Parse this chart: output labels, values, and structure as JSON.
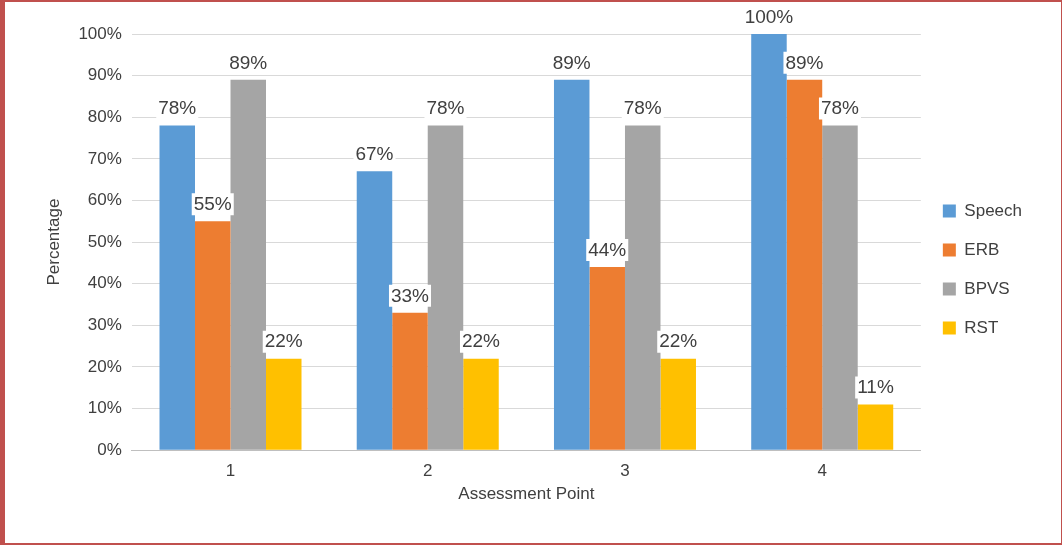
{
  "chart_data": {
    "type": "bar",
    "xlabel": "Assessment Point",
    "ylabel": "Percentage",
    "categories": [
      "1",
      "2",
      "3",
      "4"
    ],
    "series": [
      {
        "name": "Speech",
        "color": "#5b9bd5",
        "values": [
          78,
          67,
          89,
          100
        ],
        "value_labels": [
          "78%",
          "67%",
          "89%",
          "100%"
        ]
      },
      {
        "name": "ERB",
        "color": "#ed7d31",
        "values": [
          55,
          33,
          44,
          89
        ],
        "value_labels": [
          "55%",
          "33%",
          "44%",
          "89%"
        ]
      },
      {
        "name": "BPVS",
        "color": "#a5a5a5",
        "values": [
          89,
          78,
          78,
          78
        ],
        "value_labels": [
          "89%",
          "78%",
          "78%",
          "78%"
        ]
      },
      {
        "name": "RST",
        "color": "#ffc000",
        "values": [
          22,
          22,
          22,
          11
        ],
        "value_labels": [
          "22%",
          "22%",
          "22%",
          "11%"
        ]
      }
    ],
    "ylim": [
      0,
      100
    ],
    "yticks": [
      {
        "value": 0,
        "label": "0%"
      },
      {
        "value": 10,
        "label": "10%"
      },
      {
        "value": 20,
        "label": "20%"
      },
      {
        "value": 30,
        "label": "30%"
      },
      {
        "value": 40,
        "label": "40%"
      },
      {
        "value": 50,
        "label": "50%"
      },
      {
        "value": 60,
        "label": "60%"
      },
      {
        "value": 70,
        "label": "70%"
      },
      {
        "value": 80,
        "label": "80%"
      },
      {
        "value": 90,
        "label": "90%"
      },
      {
        "value": 100,
        "label": "100%"
      }
    ],
    "grid": "y",
    "legend": "right"
  }
}
